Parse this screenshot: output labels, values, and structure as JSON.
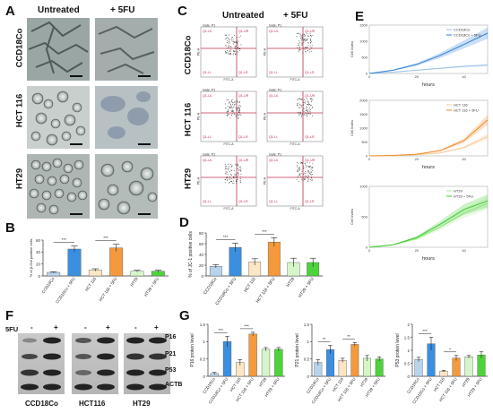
{
  "labels": {
    "A": "A",
    "B": "B",
    "C": "C",
    "D": "D",
    "E": "E",
    "F": "F",
    "G": "G"
  },
  "panelA": {
    "col1": "Untreated",
    "col2": "+ 5FU",
    "rows": [
      "CCD18Co",
      "HCT 116",
      "HT29"
    ]
  },
  "panelC": {
    "col1": "Untreated",
    "col2": "+ 5FU",
    "rows": [
      "CCD18Co",
      "HCT 116",
      "HT29"
    ],
    "gate": "Gate: P1",
    "q_tl": "Q1-UL",
    "q_tr": "Q1-UR",
    "q_bl": "Q1-LL",
    "q_br": "Q1-LR",
    "xaxis": "FITC-A",
    "yaxis": "PE-A"
  },
  "panelF": {
    "treat_label": "5FU",
    "minus": "-",
    "plus": "+",
    "bands": [
      "P16",
      "P21",
      "P53",
      "ACTB"
    ],
    "lines": [
      "CCD18Co",
      "HCT116",
      "HT29"
    ]
  },
  "chart_data": [
    {
      "id": "B",
      "type": "bar",
      "categories": [
        "CCD18Co",
        "CCD18Co + 5FU",
        "HCT 116",
        "HCT 116 + 5FU",
        "HT29",
        "HT29 + 5FU"
      ],
      "values": [
        6,
        45,
        10,
        47,
        8,
        8
      ],
      "errors": [
        1,
        5,
        2,
        6,
        1.5,
        1.5
      ],
      "colors": [
        "#b8d4ec",
        "#3a8fe0",
        "#fde6c4",
        "#f49a3c",
        "#d6f5c8",
        "#4cd43a"
      ],
      "ylabel": "% of β-Gal positive cells",
      "ylim": [
        0,
        60
      ],
      "yticks": [
        0,
        20,
        40,
        60
      ],
      "sig": [
        "***",
        "***"
      ]
    },
    {
      "id": "D",
      "type": "bar",
      "categories": [
        "CCD18Co",
        "CCD18Co + 5FU",
        "HCT 116",
        "HCT 116 + 5FU",
        "HT29",
        "HT29 + 5FU"
      ],
      "values": [
        18,
        53,
        26,
        63,
        25,
        25
      ],
      "errors": [
        3,
        8,
        6,
        8,
        8,
        8
      ],
      "colors": [
        "#b8d4ec",
        "#3a8fe0",
        "#fde6c4",
        "#f49a3c",
        "#d6f5c8",
        "#4cd43a"
      ],
      "ylabel": "% of JC-1 positive cells",
      "ylim": [
        0,
        80
      ],
      "yticks": [
        0,
        20,
        40,
        60,
        80
      ],
      "sig": [
        "***",
        "***"
      ]
    },
    {
      "id": "E1",
      "type": "line",
      "x": [
        0,
        10,
        20,
        30,
        40,
        50
      ],
      "series": [
        {
          "name": "CCD18Co",
          "values": [
            0,
            40,
            100,
            160,
            220,
            260
          ]
        },
        {
          "name": "CCD18Co + 5FU",
          "values": [
            0,
            100,
            280,
            560,
            900,
            1250
          ]
        }
      ],
      "colors": [
        "#9ac2e6",
        "#2f7fd6"
      ],
      "xlabel": "hours",
      "ylabel": "Cell Index",
      "ylim": [
        0,
        1500
      ],
      "yticks": [
        0,
        500,
        1000,
        1500
      ],
      "xticks": [
        0,
        20,
        40
      ]
    },
    {
      "id": "E2",
      "type": "line",
      "x": [
        0,
        10,
        20,
        30,
        40,
        50
      ],
      "series": [
        {
          "name": "HCT 116",
          "values": [
            0,
            10,
            40,
            110,
            300,
            700
          ]
        },
        {
          "name": "HCT 116 + 5FU",
          "values": [
            0,
            15,
            60,
            190,
            550,
            1300
          ]
        }
      ],
      "colors": [
        "#f6c890",
        "#ee8a22"
      ],
      "xlabel": "hours",
      "ylabel": "Cell Index",
      "ylim": [
        0,
        2000
      ],
      "yticks": [
        0,
        500,
        1000,
        1500,
        2000
      ],
      "xticks": [
        0,
        20,
        40
      ]
    },
    {
      "id": "E3",
      "type": "line",
      "x": [
        0,
        10,
        20,
        30,
        40,
        50
      ],
      "series": [
        {
          "name": "HT29",
          "values": [
            0,
            40,
            140,
            330,
            560,
            720
          ]
        },
        {
          "name": "HT29 + 5FU",
          "values": [
            0,
            40,
            160,
            380,
            620,
            760
          ]
        }
      ],
      "colors": [
        "#a9ea98",
        "#3ccb2a"
      ],
      "xlabel": "hours",
      "ylabel": "Cell Index",
      "ylim": [
        0,
        1000
      ],
      "yticks": [
        0,
        500,
        1000
      ],
      "xticks": [
        0,
        20,
        40
      ]
    },
    {
      "id": "G1",
      "type": "bar",
      "categories": [
        "CCD18Co",
        "CCD18Co + 5FU",
        "HCT 116",
        "HCT 116 + 5FU",
        "HT29",
        "HT29 + 5FU"
      ],
      "values": [
        0.08,
        1.0,
        0.4,
        1.22,
        0.78,
        0.78
      ],
      "errors": [
        0.03,
        0.15,
        0.08,
        0.05,
        0.05,
        0.05
      ],
      "colors": [
        "#b8d4ec",
        "#3a8fe0",
        "#fde6c4",
        "#f49a3c",
        "#d6f5c8",
        "#4cd43a"
      ],
      "ylabel": "P16 protein level",
      "ylim": [
        0,
        1.5
      ],
      "yticks": [
        0,
        0.5,
        1.0,
        1.5
      ],
      "sig": [
        "***",
        "***"
      ]
    },
    {
      "id": "G2",
      "type": "bar",
      "categories": [
        "CCD18Co",
        "CCD18Co + 5FU",
        "HCT 116",
        "HCT 116 + 5FU",
        "HT29",
        "HT29 + 5FU"
      ],
      "values": [
        0.4,
        0.77,
        0.46,
        0.92,
        0.52,
        0.5
      ],
      "errors": [
        0.08,
        0.12,
        0.06,
        0.05,
        0.08,
        0.06
      ],
      "colors": [
        "#b8d4ec",
        "#3a8fe0",
        "#fde6c4",
        "#f49a3c",
        "#d6f5c8",
        "#4cd43a"
      ],
      "ylabel": "P21 protein level",
      "ylim": [
        0,
        1.5
      ],
      "yticks": [
        0,
        0.5,
        1.0,
        1.5
      ],
      "sig": [
        "**",
        "**"
      ]
    },
    {
      "id": "G3",
      "type": "bar",
      "categories": [
        "CCD18Co",
        "CCD18Co + 5FU",
        "HCT 116",
        "HCT 116 + 5FU",
        "HT29",
        "HT29 + 5FU"
      ],
      "values": [
        0.65,
        1.25,
        0.2,
        0.7,
        0.75,
        0.82
      ],
      "errors": [
        0.08,
        0.25,
        0.03,
        0.1,
        0.05,
        0.12
      ],
      "colors": [
        "#b8d4ec",
        "#3a8fe0",
        "#fde6c4",
        "#f49a3c",
        "#d6f5c8",
        "#4cd43a"
      ],
      "ylabel": "P53 protein level",
      "ylim": [
        0,
        2.0
      ],
      "yticks": [
        0,
        0.5,
        1.0,
        1.5,
        2.0
      ],
      "sig": [
        "***",
        "*"
      ]
    }
  ]
}
